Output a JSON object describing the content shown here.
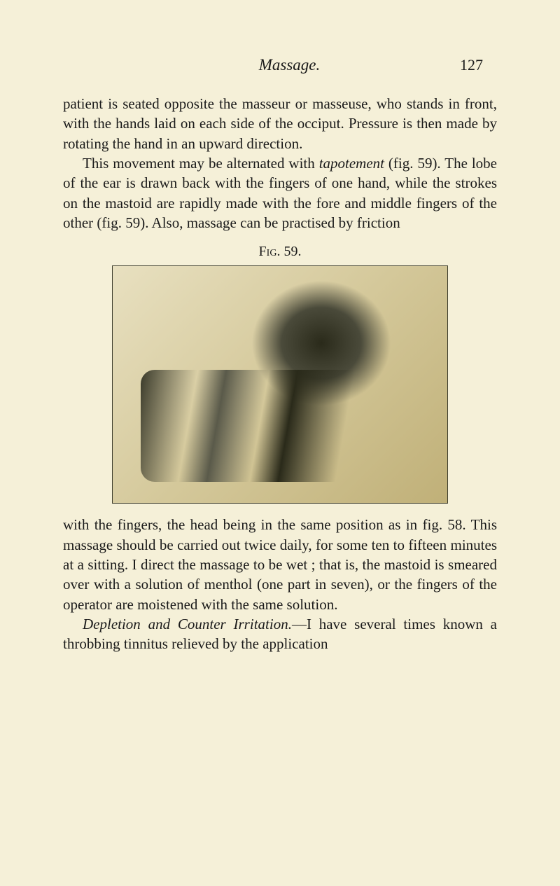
{
  "header": {
    "title": "Massage.",
    "pageNumber": "127"
  },
  "paragraphs": {
    "p1": "patient is seated opposite the masseur or masseuse, who stands in front, with the hands laid on each side of the occiput. Pressure is then made by rotating the hand in an upward direction.",
    "p2_part1": "This movement may be alternated with ",
    "p2_italic1": "tapotement",
    "p2_part2": " (fig. 59). The lobe of the ear is drawn back with the fingers of one hand, while the strokes on the mastoid are rapidly made with the fore and middle fingers of the other (fig. 59). Also, massage can be practised by friction",
    "p3": "with the fingers, the head being in the same position as in fig. 58. This massage should be carried out twice daily, for some ten to fifteen minutes at a sitting. I direct the massage to be wet ; that is, the mastoid is smeared over with a solution of menthol (one part in seven), or the fingers of the operator are moistened with the same solution.",
    "p4_italic": "Depletion and Counter Irritation.",
    "p4_rest": "—I have several times known a throbbing tinnitus relieved by the application"
  },
  "figure": {
    "label_prefix": "Fig.",
    "label_number": " 59."
  },
  "colors": {
    "background": "#f5f0d8",
    "text": "#1a1a1a"
  },
  "typography": {
    "body_fontsize": 21,
    "header_fontsize": 23,
    "figure_label_fontsize": 20,
    "line_height": 1.35,
    "font_family": "Georgia, Times New Roman, serif"
  }
}
